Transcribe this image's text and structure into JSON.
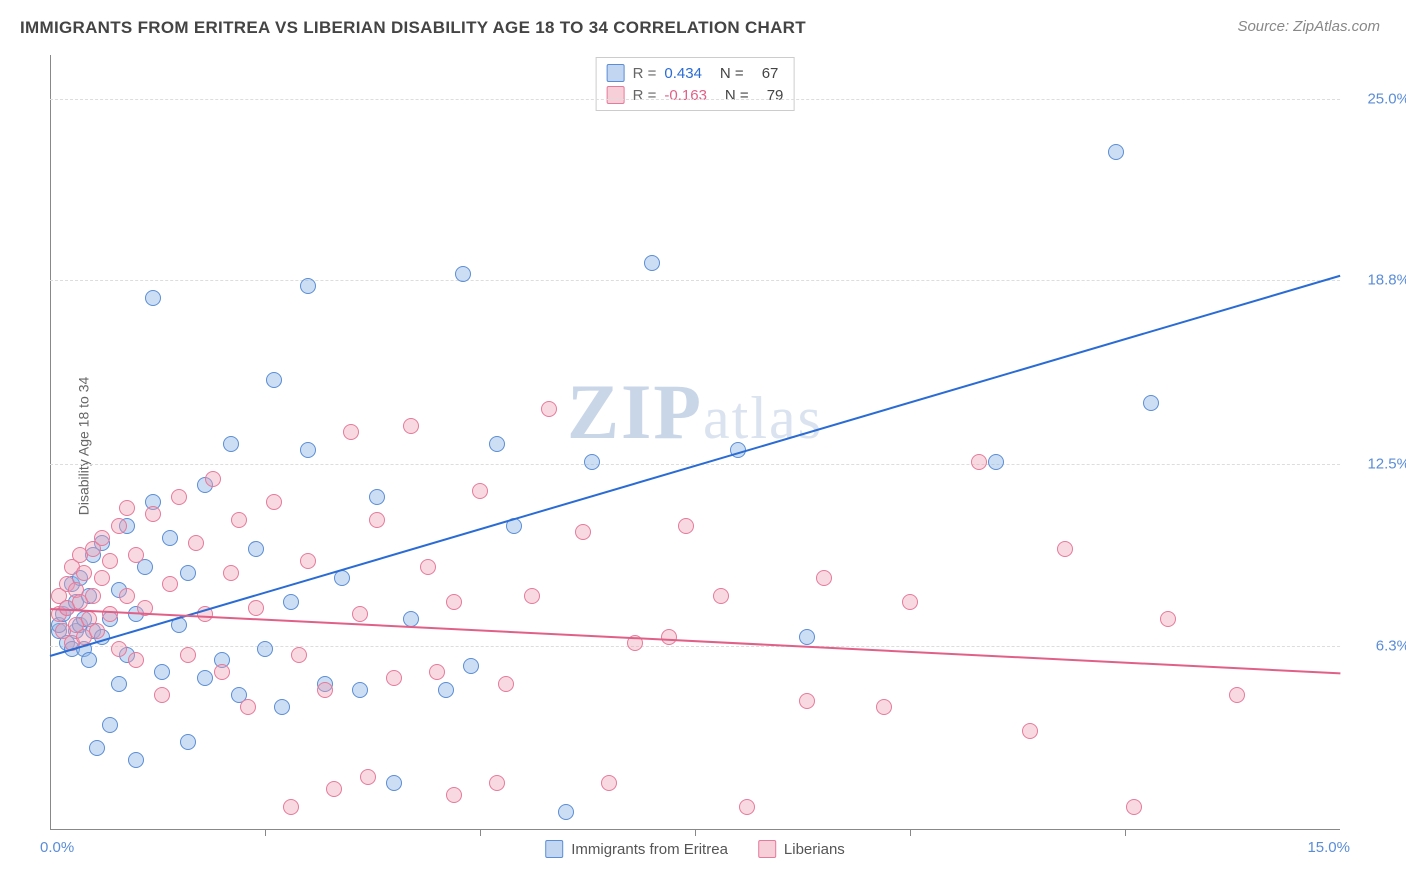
{
  "title": "IMMIGRANTS FROM ERITREA VS LIBERIAN DISABILITY AGE 18 TO 34 CORRELATION CHART",
  "source": "Source: ZipAtlas.com",
  "ylabel": "Disability Age 18 to 34",
  "watermark_main": "ZIP",
  "watermark_rest": "atlas",
  "chart": {
    "type": "scatter-with-regression",
    "background_color": "#ffffff",
    "grid_color": "#dddddd",
    "axis_color": "#888888",
    "xlim": [
      0.0,
      15.0
    ],
    "ylim": [
      0.0,
      26.5
    ],
    "x_origin_label": "0.0%",
    "x_max_label": "15.0%",
    "x_tick_positions": [
      2.5,
      5.0,
      7.5,
      10.0,
      12.5
    ],
    "y_ticks": [
      {
        "v": 6.3,
        "label": "6.3%"
      },
      {
        "v": 12.5,
        "label": "12.5%"
      },
      {
        "v": 18.8,
        "label": "18.8%"
      },
      {
        "v": 25.0,
        "label": "25.0%"
      }
    ],
    "series": [
      {
        "key": "s1",
        "name": "Immigrants from Eritrea",
        "color_fill": "rgba(143,181,230,0.45)",
        "color_stroke": "#5b8dd6",
        "line_color": "#2a6cd4",
        "R": "0.434",
        "N": "67",
        "trend": {
          "x0": 0.0,
          "y0": 6.0,
          "x1": 15.0,
          "y1": 19.0
        },
        "points": [
          [
            0.1,
            6.8
          ],
          [
            0.1,
            7.0
          ],
          [
            0.15,
            7.4
          ],
          [
            0.2,
            6.4
          ],
          [
            0.2,
            7.6
          ],
          [
            0.25,
            6.2
          ],
          [
            0.25,
            8.4
          ],
          [
            0.3,
            6.8
          ],
          [
            0.3,
            7.8
          ],
          [
            0.35,
            7.0
          ],
          [
            0.35,
            8.6
          ],
          [
            0.4,
            6.2
          ],
          [
            0.4,
            7.2
          ],
          [
            0.45,
            5.8
          ],
          [
            0.45,
            8.0
          ],
          [
            0.5,
            6.8
          ],
          [
            0.5,
            9.4
          ],
          [
            0.55,
            2.8
          ],
          [
            0.6,
            6.6
          ],
          [
            0.6,
            9.8
          ],
          [
            0.7,
            3.6
          ],
          [
            0.7,
            7.2
          ],
          [
            0.8,
            5.0
          ],
          [
            0.8,
            8.2
          ],
          [
            0.9,
            6.0
          ],
          [
            0.9,
            10.4
          ],
          [
            1.0,
            2.4
          ],
          [
            1.0,
            7.4
          ],
          [
            1.1,
            9.0
          ],
          [
            1.2,
            11.2
          ],
          [
            1.2,
            18.2
          ],
          [
            1.3,
            5.4
          ],
          [
            1.4,
            10.0
          ],
          [
            1.5,
            7.0
          ],
          [
            1.6,
            8.8
          ],
          [
            1.6,
            3.0
          ],
          [
            1.8,
            5.2
          ],
          [
            1.8,
            11.8
          ],
          [
            2.0,
            5.8
          ],
          [
            2.1,
            13.2
          ],
          [
            2.2,
            4.6
          ],
          [
            2.4,
            9.6
          ],
          [
            2.5,
            6.2
          ],
          [
            2.6,
            15.4
          ],
          [
            2.7,
            4.2
          ],
          [
            2.8,
            7.8
          ],
          [
            3.0,
            13.0
          ],
          [
            3.0,
            18.6
          ],
          [
            3.2,
            5.0
          ],
          [
            3.4,
            8.6
          ],
          [
            3.6,
            4.8
          ],
          [
            3.8,
            11.4
          ],
          [
            4.0,
            1.6
          ],
          [
            4.2,
            7.2
          ],
          [
            4.6,
            4.8
          ],
          [
            4.8,
            19.0
          ],
          [
            4.9,
            5.6
          ],
          [
            5.2,
            13.2
          ],
          [
            5.4,
            10.4
          ],
          [
            6.0,
            0.6
          ],
          [
            6.3,
            12.6
          ],
          [
            7.0,
            19.4
          ],
          [
            8.0,
            13.0
          ],
          [
            8.8,
            6.6
          ],
          [
            11.0,
            12.6
          ],
          [
            12.4,
            23.2
          ],
          [
            12.8,
            14.6
          ]
        ]
      },
      {
        "key": "s2",
        "name": "Liberians",
        "color_fill": "rgba(240,160,180,0.40)",
        "color_stroke": "#e67a9a",
        "line_color": "#e06088",
        "R": "-0.163",
        "N": "79",
        "trend": {
          "x0": 0.0,
          "y0": 7.6,
          "x1": 15.0,
          "y1": 5.4
        },
        "points": [
          [
            0.1,
            7.4
          ],
          [
            0.1,
            8.0
          ],
          [
            0.15,
            6.8
          ],
          [
            0.2,
            7.6
          ],
          [
            0.2,
            8.4
          ],
          [
            0.25,
            6.4
          ],
          [
            0.25,
            9.0
          ],
          [
            0.3,
            7.0
          ],
          [
            0.3,
            8.2
          ],
          [
            0.35,
            7.8
          ],
          [
            0.35,
            9.4
          ],
          [
            0.4,
            6.6
          ],
          [
            0.4,
            8.8
          ],
          [
            0.45,
            7.2
          ],
          [
            0.5,
            8.0
          ],
          [
            0.5,
            9.6
          ],
          [
            0.55,
            6.8
          ],
          [
            0.6,
            8.6
          ],
          [
            0.6,
            10.0
          ],
          [
            0.7,
            7.4
          ],
          [
            0.7,
            9.2
          ],
          [
            0.8,
            6.2
          ],
          [
            0.8,
            10.4
          ],
          [
            0.9,
            8.0
          ],
          [
            0.9,
            11.0
          ],
          [
            1.0,
            5.8
          ],
          [
            1.0,
            9.4
          ],
          [
            1.1,
            7.6
          ],
          [
            1.2,
            10.8
          ],
          [
            1.3,
            4.6
          ],
          [
            1.4,
            8.4
          ],
          [
            1.5,
            11.4
          ],
          [
            1.6,
            6.0
          ],
          [
            1.7,
            9.8
          ],
          [
            1.8,
            7.4
          ],
          [
            1.9,
            12.0
          ],
          [
            2.0,
            5.4
          ],
          [
            2.1,
            8.8
          ],
          [
            2.2,
            10.6
          ],
          [
            2.3,
            4.2
          ],
          [
            2.4,
            7.6
          ],
          [
            2.6,
            11.2
          ],
          [
            2.8,
            0.8
          ],
          [
            2.9,
            6.0
          ],
          [
            3.0,
            9.2
          ],
          [
            3.2,
            4.8
          ],
          [
            3.3,
            1.4
          ],
          [
            3.5,
            13.6
          ],
          [
            3.6,
            7.4
          ],
          [
            3.7,
            1.8
          ],
          [
            3.8,
            10.6
          ],
          [
            4.0,
            5.2
          ],
          [
            4.2,
            13.8
          ],
          [
            4.4,
            9.0
          ],
          [
            4.5,
            5.4
          ],
          [
            4.7,
            1.2
          ],
          [
            4.7,
            7.8
          ],
          [
            5.0,
            11.6
          ],
          [
            5.2,
            1.6
          ],
          [
            5.3,
            5.0
          ],
          [
            5.6,
            8.0
          ],
          [
            5.8,
            14.4
          ],
          [
            6.2,
            10.2
          ],
          [
            6.5,
            1.6
          ],
          [
            6.8,
            6.4
          ],
          [
            7.2,
            6.6
          ],
          [
            7.4,
            10.4
          ],
          [
            7.8,
            8.0
          ],
          [
            8.1,
            0.8
          ],
          [
            8.8,
            4.4
          ],
          [
            9.0,
            8.6
          ],
          [
            9.7,
            4.2
          ],
          [
            10.0,
            7.8
          ],
          [
            10.8,
            12.6
          ],
          [
            11.4,
            3.4
          ],
          [
            11.8,
            9.6
          ],
          [
            12.6,
            0.8
          ],
          [
            13.0,
            7.2
          ],
          [
            13.8,
            4.6
          ]
        ]
      }
    ]
  },
  "legend_bottom": [
    {
      "key": "s1",
      "label": "Immigrants from Eritrea"
    },
    {
      "key": "s2",
      "label": "Liberians"
    }
  ],
  "legend_top_labels": {
    "r": "R  =",
    "n": "N  ="
  }
}
